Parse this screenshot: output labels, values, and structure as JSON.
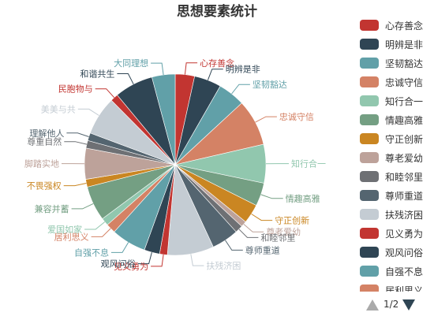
{
  "chart_data": {
    "type": "pie",
    "title": "思想要素统计",
    "series": [
      {
        "name": "心存善念",
        "value": 5,
        "color": "#c23531"
      },
      {
        "name": "明辨是非",
        "value": 7,
        "color": "#2f4554"
      },
      {
        "name": "坚韧豁达",
        "value": 7,
        "color": "#61a0a8"
      },
      {
        "name": "忠诚守信",
        "value": 12,
        "color": "#d48265"
      },
      {
        "name": "知行合一",
        "value": 10,
        "color": "#91c7ae"
      },
      {
        "name": "情趣高雅",
        "value": 6,
        "color": "#749f83"
      },
      {
        "name": "守正创新",
        "value": 5,
        "color": "#ca8622"
      },
      {
        "name": "尊老爱幼",
        "value": 1.5,
        "color": "#bda29a"
      },
      {
        "name": "和睦邻里",
        "value": 2,
        "color": "#6e7074"
      },
      {
        "name": "尊师重道",
        "value": 7,
        "color": "#546570"
      },
      {
        "name": "扶残济困",
        "value": 12,
        "color": "#c4ccd3"
      },
      {
        "name": "见义勇为",
        "value": 2,
        "color": "#c23531"
      },
      {
        "name": "观风问俗",
        "value": 4,
        "color": "#2f4554"
      },
      {
        "name": "自强不息",
        "value": 9,
        "color": "#61a0a8"
      },
      {
        "name": "居利思义",
        "value": 2.5,
        "color": "#d48265"
      },
      {
        "name": "爱国如家",
        "value": 2,
        "color": "#91c7ae"
      },
      {
        "name": "兼容并蓄",
        "value": 9,
        "color": "#749f83"
      },
      {
        "name": "不畏强权",
        "value": 2,
        "color": "#ca8622"
      },
      {
        "name": "脚踏实地",
        "value": 8,
        "color": "#bda29a"
      },
      {
        "name": "尊重自然",
        "value": 2,
        "color": "#6e7074"
      },
      {
        "name": "理解他人",
        "value": 2,
        "color": "#546570"
      },
      {
        "name": "美美与共",
        "value": 10,
        "color": "#c4ccd3"
      },
      {
        "name": "民胞物与",
        "value": 2,
        "color": "#c23531"
      },
      {
        "name": "和谐共生",
        "value": 10,
        "color": "#2f4554"
      },
      {
        "name": "大同理想",
        "value": 6,
        "color": "#61a0a8"
      }
    ],
    "legend": {
      "placement": "right",
      "visible_items": [
        "心存善念",
        "明辨是非",
        "坚韧豁达",
        "忠诚守信",
        "知行合一",
        "情趣高雅",
        "守正创新",
        "尊老爱幼",
        "和睦邻里",
        "尊师重道",
        "扶残济困",
        "见义勇为",
        "观风问俗",
        "自强不息",
        "居利思义"
      ],
      "page_text": "1/2"
    }
  }
}
